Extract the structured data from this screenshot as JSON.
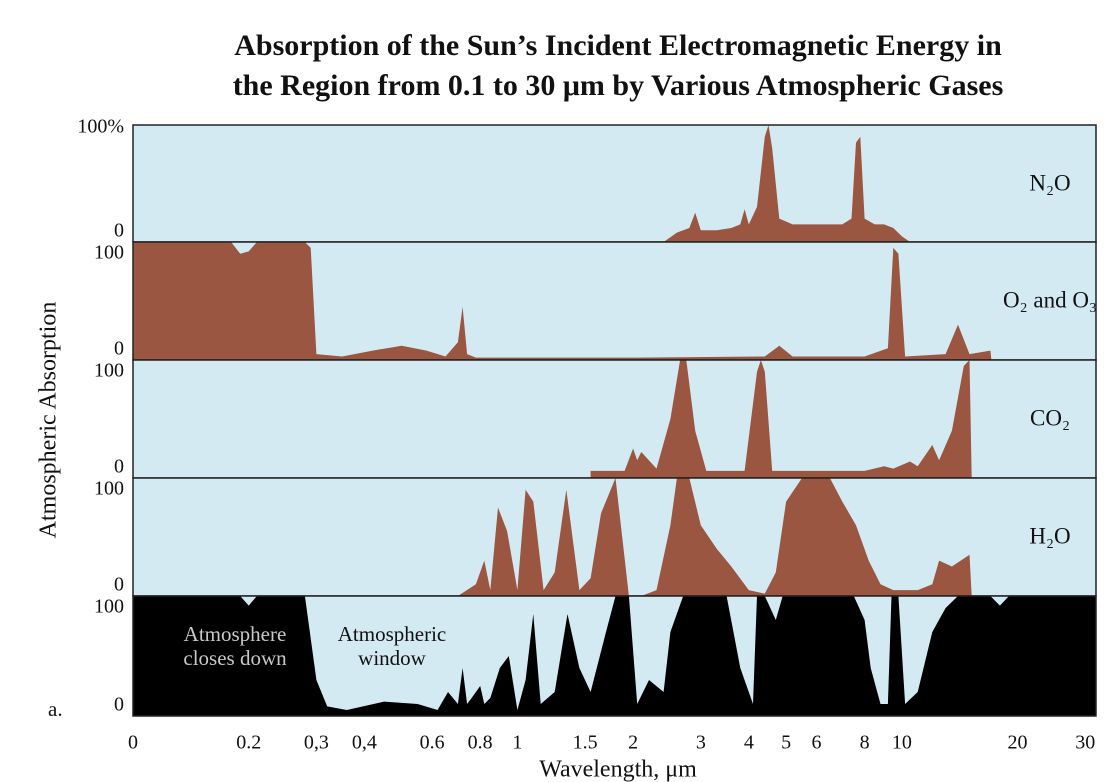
{
  "chart_data": [
    {
      "type": "area",
      "title_lines": [
        "Absorption of the Sun’s Incident Electromagnetic Energy in",
        "the Region from 0.1 to 30 μm by Various Atmospheric Gases"
      ],
      "xscale": "log",
      "xlim": [
        0.1,
        32
      ],
      "ylim": [
        0,
        100
      ],
      "yticks": [
        0,
        {
          "value": 100,
          "label": "100%"
        }
      ],
      "background": "#d3eaf3",
      "series": [
        {
          "name": "N₂O",
          "color": "#9a5640",
          "x": [
            2.4,
            2.6,
            2.8,
            2.9,
            3.0,
            3.3,
            3.6,
            3.8,
            3.9,
            4.0,
            4.2,
            4.4,
            4.5,
            4.6,
            4.8,
            5.2,
            6.0,
            7.0,
            7.4,
            7.6,
            7.8,
            8.0,
            8.5,
            9.0,
            9.5,
            10,
            10.5
          ],
          "values": [
            0,
            8,
            12,
            25,
            10,
            10,
            12,
            15,
            28,
            15,
            30,
            90,
            100,
            80,
            20,
            15,
            15,
            15,
            20,
            85,
            90,
            20,
            15,
            15,
            12,
            5,
            0
          ]
        }
      ]
    },
    {
      "type": "area",
      "xscale": "log",
      "xlim": [
        0.1,
        32
      ],
      "ylim": [
        0,
        100
      ],
      "yticks": [
        0,
        100
      ],
      "background": "#d3eaf3",
      "series": [
        {
          "name": "O₂ and O₃",
          "color": "#9a5640",
          "x": [
            0.1,
            0.18,
            0.19,
            0.2,
            0.21,
            0.28,
            0.29,
            0.3,
            0.35,
            0.42,
            0.5,
            0.58,
            0.65,
            0.7,
            0.72,
            0.74,
            0.78,
            1,
            2,
            4.4,
            4.8,
            5.2,
            8,
            9.2,
            9.5,
            9.8,
            10.2,
            13,
            14,
            15,
            17,
            17.1
          ],
          "values": [
            100,
            100,
            90,
            92,
            100,
            100,
            95,
            5,
            3,
            8,
            12,
            8,
            3,
            15,
            45,
            5,
            2,
            2,
            2,
            3,
            12,
            3,
            3,
            10,
            95,
            90,
            3,
            5,
            30,
            5,
            8,
            0
          ]
        }
      ]
    },
    {
      "type": "area",
      "xscale": "log",
      "xlim": [
        0.1,
        32
      ],
      "ylim": [
        0,
        100
      ],
      "yticks": [
        0,
        100
      ],
      "background": "#d3eaf3",
      "y_label": "Atmospheric Absorption",
      "series": [
        {
          "name": "CO₂",
          "color": "#9a5640",
          "x": [
            1.55,
            1.9,
            2.0,
            2.05,
            2.1,
            2.3,
            2.5,
            2.65,
            2.75,
            2.9,
            3.1,
            3.5,
            3.9,
            4.2,
            4.3,
            4.4,
            4.6,
            5,
            8,
            9,
            9.5,
            10.5,
            11,
            12,
            12.5,
            13.5,
            14.5,
            15,
            15.2
          ],
          "values": [
            6,
            6,
            25,
            15,
            22,
            8,
            50,
            100,
            100,
            40,
            6,
            6,
            6,
            90,
            100,
            90,
            6,
            6,
            6,
            10,
            8,
            14,
            10,
            28,
            15,
            40,
            95,
            100,
            0
          ]
        }
      ]
    },
    {
      "type": "area",
      "xscale": "log",
      "xlim": [
        0.1,
        32
      ],
      "ylim": [
        0,
        100
      ],
      "yticks": [
        0,
        100
      ],
      "background": "#d3eaf3",
      "series": [
        {
          "name": "H₂O",
          "color": "#9a5640",
          "x": [
            0.7,
            0.78,
            0.82,
            0.85,
            0.89,
            0.94,
            1.0,
            1.05,
            1.1,
            1.17,
            1.25,
            1.34,
            1.45,
            1.55,
            1.65,
            1.8,
            1.95,
            2.1,
            2.3,
            2.5,
            2.6,
            2.8,
            3.0,
            3.3,
            3.6,
            4.0,
            4.4,
            4.7,
            5.0,
            5.5,
            6.5,
            7.0,
            7.6,
            8.2,
            8.8,
            9.5,
            11,
            12,
            12.5,
            13.5,
            15,
            15.2
          ],
          "values": [
            0,
            10,
            30,
            5,
            75,
            55,
            5,
            90,
            80,
            5,
            20,
            90,
            5,
            15,
            70,
            100,
            0,
            0,
            5,
            60,
            100,
            100,
            60,
            40,
            25,
            5,
            2,
            20,
            80,
            100,
            100,
            80,
            60,
            30,
            10,
            5,
            5,
            10,
            30,
            25,
            35,
            0
          ]
        }
      ]
    },
    {
      "type": "area",
      "xscale": "log",
      "xlim": [
        0.1,
        32
      ],
      "ylim": [
        0,
        100
      ],
      "yticks": [
        0,
        100
      ],
      "background": "#d3eaf3",
      "xticks": [
        {
          "value": 0.1,
          "label": "0"
        },
        0.2,
        {
          "value": 0.3,
          "label": "0,3"
        },
        {
          "value": 0.4,
          "label": "0,4"
        },
        0.6,
        0.8,
        1,
        1.5,
        2,
        3,
        4,
        5,
        6,
        8,
        10,
        20,
        30
      ],
      "x_label": "Wavelength, μm",
      "panel_label": "a.",
      "annotations": [
        {
          "lines": [
            "Atmosphere",
            "closes down"
          ],
          "color": "#c8c8c8"
        },
        {
          "lines": [
            "Atmospheric",
            "window"
          ],
          "color": "#111111"
        }
      ],
      "series": [
        {
          "color": "#000000",
          "x": [
            0.1,
            0.19,
            0.2,
            0.21,
            0.28,
            0.3,
            0.32,
            0.36,
            0.45,
            0.55,
            0.62,
            0.66,
            0.7,
            0.72,
            0.74,
            0.76,
            0.8,
            0.82,
            0.85,
            0.9,
            0.95,
            1.0,
            1.05,
            1.1,
            1.15,
            1.25,
            1.35,
            1.45,
            1.55,
            1.7,
            1.8,
            1.95,
            2.05,
            2.2,
            2.4,
            2.5,
            2.7,
            3.5,
            3.8,
            4.1,
            4.2,
            4.4,
            4.7,
            4.9,
            5.5,
            7.5,
            8.0,
            8.3,
            8.8,
            9.2,
            9.4,
            9.8,
            10.2,
            11,
            12,
            13,
            14,
            17,
            18,
            19,
            30,
            32
          ],
          "values": [
            100,
            100,
            92,
            100,
            100,
            30,
            8,
            5,
            12,
            10,
            5,
            20,
            10,
            40,
            10,
            15,
            25,
            10,
            15,
            40,
            50,
            5,
            30,
            85,
            10,
            20,
            85,
            40,
            20,
            70,
            100,
            100,
            10,
            30,
            20,
            70,
            100,
            100,
            40,
            10,
            100,
            100,
            80,
            100,
            100,
            100,
            80,
            40,
            10,
            10,
            100,
            100,
            10,
            20,
            70,
            90,
            100,
            100,
            92,
            100,
            100,
            100
          ]
        }
      ]
    }
  ]
}
